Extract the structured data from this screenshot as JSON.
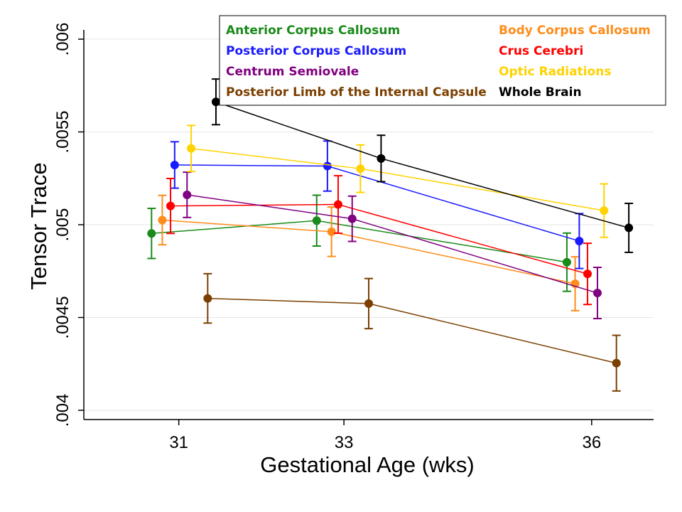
{
  "chart_data": {
    "type": "scatter",
    "xlabel": "Gestational Age (wks)",
    "ylabel": "Tensor Trace",
    "xlim": [
      29.85,
      36.75
    ],
    "ylim": [
      0.00395,
      0.00605
    ],
    "x_ticks": [
      {
        "value": 31,
        "label": "31"
      },
      {
        "value": 33,
        "label": "33"
      },
      {
        "value": 36,
        "label": "36"
      }
    ],
    "y_ticks": [
      {
        "value": 0.004,
        "label": ".004"
      },
      {
        "value": 0.0045,
        "label": ".0045"
      },
      {
        "value": 0.005,
        "label": ".005"
      },
      {
        "value": 0.0055,
        "label": ".0055"
      },
      {
        "value": 0.006,
        "label": ".006"
      }
    ],
    "grid": true,
    "legend_position": "top-right",
    "series": [
      {
        "name": "Anterior Corpus Callosum",
        "color": "#1a8a1a",
        "points": [
          {
            "x": 30.67,
            "y": 0.004953,
            "err": 0.000135
          },
          {
            "x": 32.67,
            "y": 0.005022,
            "err": 0.000137
          },
          {
            "x": 35.7,
            "y": 0.004798,
            "err": 0.000157
          }
        ]
      },
      {
        "name": "Body Corpus Callosum",
        "color": "#ff8c1a",
        "points": [
          {
            "x": 30.8,
            "y": 0.005025,
            "err": 0.000133
          },
          {
            "x": 32.85,
            "y": 0.004962,
            "err": 0.000133
          },
          {
            "x": 35.8,
            "y": 0.004682,
            "err": 0.000145
          }
        ]
      },
      {
        "name": "Posterior Corpus Callosum",
        "color": "#1a1aff",
        "points": [
          {
            "x": 30.95,
            "y": 0.005322,
            "err": 0.000125
          },
          {
            "x": 32.8,
            "y": 0.005316,
            "err": 0.000135
          },
          {
            "x": 35.85,
            "y": 0.004912,
            "err": 0.000148
          }
        ]
      },
      {
        "name": "Crus Cerebri",
        "color": "#ff0000",
        "points": [
          {
            "x": 30.9,
            "y": 0.005101,
            "err": 0.000148
          },
          {
            "x": 32.93,
            "y": 0.005109,
            "err": 0.000155
          },
          {
            "x": 35.95,
            "y": 0.004735,
            "err": 0.000165
          }
        ]
      },
      {
        "name": "Centrum Semiovale",
        "color": "#800080",
        "points": [
          {
            "x": 31.1,
            "y": 0.005161,
            "err": 0.000122
          },
          {
            "x": 33.1,
            "y": 0.005032,
            "err": 0.000122
          },
          {
            "x": 36.07,
            "y": 0.004632,
            "err": 0.000138
          }
        ]
      },
      {
        "name": "Optic Radiations",
        "color": "#ffd200",
        "points": [
          {
            "x": 31.15,
            "y": 0.005411,
            "err": 0.000124
          },
          {
            "x": 33.2,
            "y": 0.005302,
            "err": 0.000128
          },
          {
            "x": 36.15,
            "y": 0.005076,
            "err": 0.000144
          }
        ]
      },
      {
        "name": "Posterior Limb of the Internal Capsule",
        "color": "#7b3f00",
        "points": [
          {
            "x": 31.35,
            "y": 0.004603,
            "err": 0.000133
          },
          {
            "x": 33.3,
            "y": 0.004575,
            "err": 0.000135
          },
          {
            "x": 36.3,
            "y": 0.004254,
            "err": 0.00015
          }
        ]
      },
      {
        "name": "Whole Brain",
        "color": "#000000",
        "points": [
          {
            "x": 31.45,
            "y": 0.005662,
            "err": 0.000123
          },
          {
            "x": 33.45,
            "y": 0.005357,
            "err": 0.000125
          },
          {
            "x": 36.45,
            "y": 0.004983,
            "err": 0.000132
          }
        ]
      }
    ],
    "legend_layout": [
      [
        "Anterior Corpus Callosum",
        "Body Corpus Callosum"
      ],
      [
        "Posterior Corpus Callosum",
        "Crus Cerebri"
      ],
      [
        "Centrum Semiovale",
        "Optic Radiations"
      ],
      [
        "Posterior Limb of the Internal Capsule",
        "Whole Brain"
      ]
    ]
  }
}
